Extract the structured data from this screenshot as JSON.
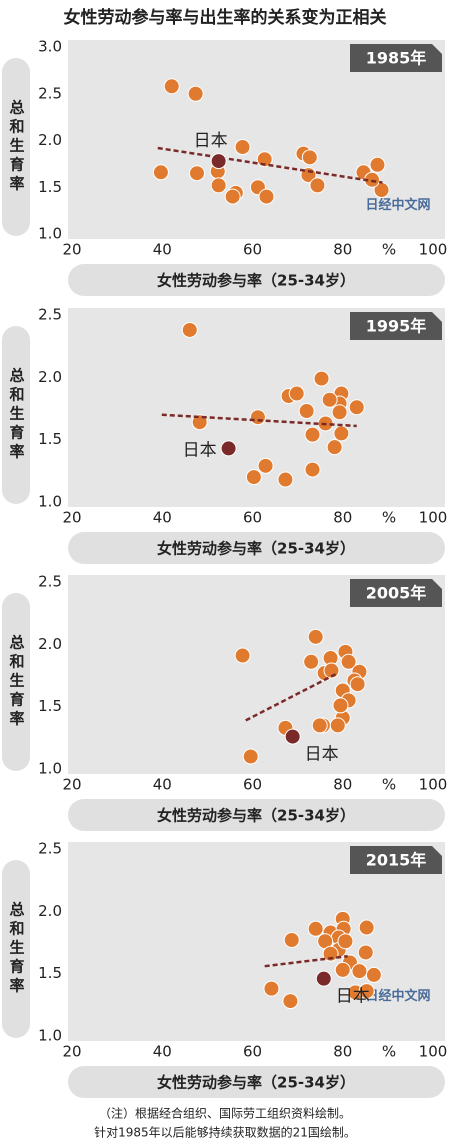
{
  "title": "女性劳动参与率与出生率的关系变为正相关",
  "chart_data": [
    {
      "type": "scatter",
      "title": "1985年",
      "x_label": "女性劳动参与率（25-34岁）",
      "y_label": "总和生育率",
      "unit": "%",
      "watermark": "日经中文网",
      "xlim": [
        20,
        100
      ],
      "xticks": [
        20,
        40,
        60,
        80,
        100
      ],
      "ylim": [
        1,
        3
      ],
      "yticks": [
        {
          "value": 1,
          "label": "1.0"
        },
        1.5,
        {
          "value": 2,
          "label": "2.0"
        },
        2.5,
        {
          "value": 3,
          "label": "3.0"
        }
      ],
      "series": [
        {
          "color": "#e07a2e",
          "x": [
            42.1,
            47.4,
            57.8,
            62.7,
            71.3,
            72.7,
            87.7,
            39.7,
            47.7,
            52.3,
            52.5,
            56.3,
            55.6,
            61.2,
            63.1,
            72.4,
            74.4,
            84.6,
            88.6,
            86.5
          ],
          "values": [
            2.58,
            2.5,
            1.93,
            1.8,
            1.86,
            1.82,
            1.74,
            1.66,
            1.65,
            1.67,
            1.52,
            1.44,
            1.4,
            1.5,
            1.4,
            1.63,
            1.52,
            1.66,
            1.47,
            1.58
          ]
        },
        {
          "name": "日本",
          "color": "#7b2a2a",
          "label_pos": "top-left",
          "x": [
            52.5
          ],
          "values": [
            1.78
          ]
        }
      ],
      "trend": {
        "color": "#7b2a2a",
        "x": [
          39,
          88.8
        ],
        "values": [
          1.92,
          1.55
        ]
      }
    },
    {
      "type": "scatter",
      "title": "1995年",
      "x_label": "女性劳动参与率（25-34岁）",
      "y_label": "总和生育率",
      "unit": "%",
      "xlim": [
        20,
        100
      ],
      "xticks": [
        20,
        40,
        60,
        80,
        100
      ],
      "ylim": [
        1,
        2.5
      ],
      "yticks": [
        {
          "value": 1,
          "label": "1.0"
        },
        1.5,
        {
          "value": 2,
          "label": "2.0"
        },
        2.5
      ],
      "series": [
        {
          "color": "#e07a2e",
          "x": [
            46.1,
            75.3,
            68,
            69.8,
            79.7,
            79.3,
            77.1,
            72,
            83.1,
            79.3,
            48.3,
            61.2,
            76.2,
            73.3,
            79.7,
            78.2,
            62.9,
            60.3,
            67.3,
            73.3
          ],
          "values": [
            2.38,
            1.99,
            1.85,
            1.87,
            1.87,
            1.79,
            1.82,
            1.73,
            1.76,
            1.72,
            1.64,
            1.68,
            1.63,
            1.54,
            1.55,
            1.44,
            1.29,
            1.2,
            1.18,
            1.26
          ]
        },
        {
          "name": "日本",
          "color": "#7b2a2a",
          "label_pos": "left",
          "x": [
            54.7
          ],
          "values": [
            1.43
          ]
        }
      ],
      "trend": {
        "color": "#7b2a2a",
        "x": [
          39.9,
          83.1
        ],
        "values": [
          1.7,
          1.61
        ]
      }
    },
    {
      "type": "scatter",
      "title": "2005年",
      "x_label": "女性劳动参与率（25-34岁）",
      "y_label": "总和生育率",
      "unit": "%",
      "xlim": [
        20,
        100
      ],
      "xticks": [
        20,
        40,
        60,
        80,
        100
      ],
      "ylim": [
        1,
        2.5
      ],
      "yticks": [
        {
          "value": 1,
          "label": "1.0"
        },
        1.5,
        {
          "value": 2,
          "label": "2.0"
        },
        2.5
      ],
      "series": [
        {
          "color": "#e07a2e",
          "x": [
            74,
            57.8,
            80.6,
            81.3,
            77.3,
            73,
            76,
            83.7,
            82.6,
            80,
            81.3,
            80,
            75.6,
            74.9,
            78.9,
            67.3,
            59.6,
            79.5,
            83.3,
            77.5
          ],
          "values": [
            2.06,
            1.91,
            1.94,
            1.86,
            1.89,
            1.86,
            1.77,
            1.78,
            1.71,
            1.63,
            1.55,
            1.41,
            1.35,
            1.35,
            1.35,
            1.33,
            1.1,
            1.51,
            1.68,
            1.79
          ]
        },
        {
          "name": "日本",
          "color": "#7b2a2a",
          "label_pos": "bottom-right",
          "x": [
            68.9
          ],
          "values": [
            1.26
          ]
        }
      ],
      "trend": {
        "color": "#7b2a2a",
        "x": [
          58.5,
          78.4
        ],
        "values": [
          1.39,
          1.76
        ]
      }
    },
    {
      "type": "scatter",
      "title": "2015年",
      "x_label": "女性劳动参与率（25-34岁）",
      "y_label": "总和生育率",
      "unit": "%",
      "watermark": "日经中文网",
      "xlim": [
        20,
        100
      ],
      "xticks": [
        20,
        40,
        60,
        80,
        100
      ],
      "ylim": [
        1,
        2.5
      ],
      "yticks": [
        {
          "value": 1,
          "label": "1.0"
        },
        1.5,
        {
          "value": 2,
          "label": "2.0"
        },
        2.5
      ],
      "series": [
        {
          "color": "#e07a2e",
          "x": [
            68.7,
            74,
            77.3,
            80,
            80.2,
            79.1,
            85.3,
            76.1,
            85.1,
            79.1,
            77.3,
            81.6,
            80,
            86.9,
            83.7,
            82.8,
            85.3,
            64.2,
            68.4,
            80.6
          ],
          "values": [
            1.77,
            1.86,
            1.83,
            1.94,
            1.86,
            1.79,
            1.87,
            1.76,
            1.67,
            1.69,
            1.66,
            1.59,
            1.53,
            1.49,
            1.52,
            1.35,
            1.36,
            1.38,
            1.28,
            1.76
          ]
        },
        {
          "name": "日本",
          "color": "#7b2a2a",
          "label_pos": "right",
          "x": [
            75.8
          ],
          "values": [
            1.46
          ]
        }
      ],
      "trend": {
        "color": "#7b2a2a",
        "x": [
          62.7,
          81.1
        ],
        "values": [
          1.56,
          1.64
        ]
      }
    }
  ],
  "footer": [
    "（注）根据经合组织、国际劳工组织资料绘制。",
    "针对1985年以后能够持续获取数据的21国绘制。"
  ]
}
